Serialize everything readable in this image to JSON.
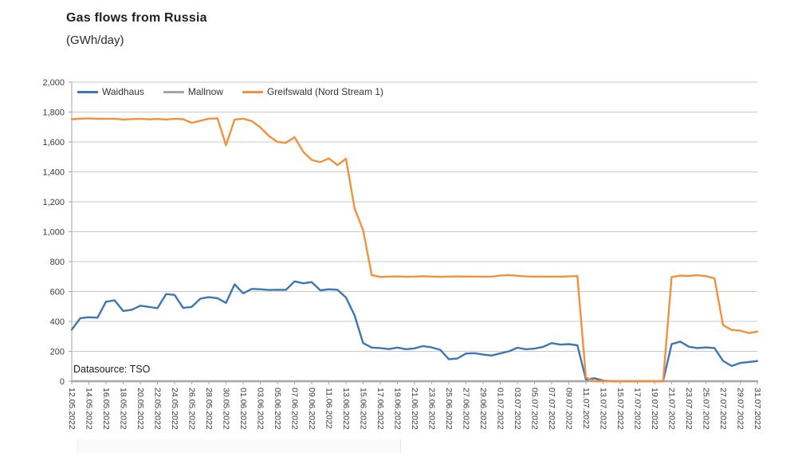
{
  "page": {
    "title": "Gas flows from Russia",
    "subtitle": "(GWh/day)",
    "datasource": "Datasource: TSO"
  },
  "colors": {
    "waidhaus": "#3d76b5",
    "mallnow": "#a6a6a6",
    "greifswald": "#f2913d",
    "gridline": "#c9c9c9",
    "axis": "#a6a6a6",
    "label_text": "#3a3a3a"
  },
  "chart_data": {
    "type": "line",
    "title": "Gas flows from Russia",
    "ylabel": "(GWh/day)",
    "ylim": [
      0,
      2000
    ],
    "y_tick_step": 200,
    "y_ticks": [
      "0",
      "200",
      "400",
      "600",
      "800",
      "1,000",
      "1,200",
      "1,400",
      "1,600",
      "1,800",
      "2,000"
    ],
    "grid": true,
    "legend_position": "top-left-inside",
    "x_tick_every": 2,
    "x": [
      "12.05.2022",
      "13.05.2022",
      "14.05.2022",
      "15.05.2022",
      "16.05.2022",
      "17.05.2022",
      "18.05.2022",
      "19.05.2022",
      "20.05.2022",
      "21.05.2022",
      "22.05.2022",
      "23.05.2022",
      "24.05.2022",
      "25.05.2022",
      "26.05.2022",
      "27.05.2022",
      "28.05.2022",
      "29.05.2022",
      "30.05.2022",
      "31.05.2022",
      "01.06.2022",
      "02.06.2022",
      "03.06.2022",
      "04.06.2022",
      "05.06.2022",
      "06.06.2022",
      "07.06.2022",
      "08.06.2022",
      "09.06.2022",
      "10.06.2022",
      "11.06.2022",
      "12.06.2022",
      "13.06.2022",
      "14.06.2022",
      "15.06.2022",
      "16.06.2022",
      "17.06.2022",
      "18.06.2022",
      "19.06.2022",
      "20.06.2022",
      "21.06.2022",
      "22.06.2022",
      "23.06.2022",
      "24.06.2022",
      "25.06.2022",
      "26.06.2022",
      "27.06.2022",
      "28.06.2022",
      "29.06.2022",
      "30.06.2022",
      "01.07.2022",
      "02.07.2022",
      "03.07.2022",
      "04.07.2022",
      "05.07.2022",
      "06.07.2022",
      "07.07.2022",
      "08.07.2022",
      "09.07.2022",
      "10.07.2022",
      "11.07.2022",
      "12.07.2022",
      "13.07.2022",
      "14.07.2022",
      "15.07.2022",
      "16.07.2022",
      "17.07.2022",
      "18.07.2022",
      "19.07.2022",
      "20.07.2022",
      "21.07.2022",
      "22.07.2022",
      "23.07.2022",
      "24.07.2022",
      "25.07.2022",
      "26.07.2022",
      "27.07.2022",
      "28.07.2022",
      "29.07.2022",
      "30.07.2022",
      "31.07.2022"
    ],
    "series": [
      {
        "name": "Waidhaus",
        "color": "#3d76b5",
        "values": [
          345,
          422,
          428,
          425,
          532,
          541,
          470,
          478,
          505,
          497,
          488,
          583,
          577,
          490,
          497,
          552,
          562,
          555,
          524,
          648,
          588,
          617,
          615,
          610,
          612,
          611,
          668,
          655,
          663,
          608,
          615,
          612,
          560,
          440,
          255,
          225,
          222,
          215,
          225,
          214,
          220,
          235,
          226,
          210,
          147,
          152,
          185,
          188,
          178,
          172,
          186,
          200,
          224,
          214,
          218,
          230,
          255,
          245,
          248,
          240,
          12,
          20,
          4,
          0,
          0,
          0,
          0,
          0,
          0,
          0,
          248,
          265,
          231,
          222,
          226,
          222,
          136,
          102,
          122,
          128,
          135
        ]
      },
      {
        "name": "Mallnow",
        "color": "#a6a6a6",
        "values": [
          0,
          0,
          0,
          0,
          0,
          0,
          0,
          0,
          0,
          0,
          0,
          0,
          0,
          0,
          0,
          0,
          0,
          0,
          0,
          0,
          0,
          0,
          0,
          0,
          0,
          0,
          0,
          0,
          0,
          0,
          0,
          0,
          0,
          0,
          0,
          0,
          0,
          0,
          0,
          0,
          0,
          0,
          0,
          0,
          0,
          0,
          0,
          0,
          0,
          0,
          0,
          0,
          0,
          0,
          0,
          0,
          0,
          0,
          0,
          0,
          0,
          0,
          0,
          0,
          0,
          0,
          0,
          0,
          0,
          0,
          0,
          0,
          0,
          0,
          0,
          0,
          0,
          0,
          0,
          0,
          0
        ]
      },
      {
        "name": "Greifswald (Nord Stream 1)",
        "color": "#f2913d",
        "values": [
          1752,
          1756,
          1758,
          1755,
          1754,
          1756,
          1750,
          1753,
          1755,
          1751,
          1754,
          1750,
          1755,
          1752,
          1728,
          1742,
          1756,
          1758,
          1578,
          1750,
          1755,
          1740,
          1698,
          1640,
          1600,
          1595,
          1632,
          1535,
          1480,
          1465,
          1490,
          1445,
          1488,
          1155,
          1010,
          710,
          697,
          700,
          701,
          699,
          700,
          702,
          700,
          698,
          700,
          701,
          700,
          700,
          699,
          700,
          706,
          710,
          705,
          701,
          700,
          700,
          699,
          700,
          701,
          703,
          25,
          0,
          0,
          0,
          0,
          0,
          0,
          0,
          0,
          0,
          697,
          706,
          704,
          709,
          703,
          688,
          375,
          343,
          338,
          322,
          332
        ]
      }
    ]
  }
}
